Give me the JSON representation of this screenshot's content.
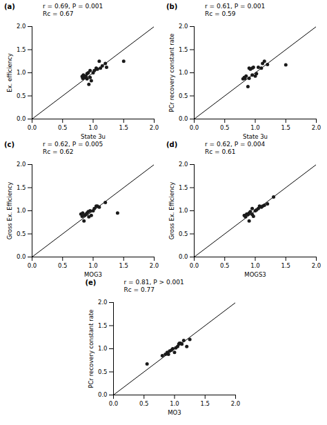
{
  "chart_data": [
    {
      "type": "scatter",
      "title": "(a)",
      "annotation": "r = 0.69, P = 0.001\nRc = 0.67",
      "xlabel": "State 3u",
      "ylabel": "Ex. efficiency",
      "xlim": [
        0.0,
        2.0
      ],
      "ylim": [
        0.0,
        2.0
      ],
      "xticks": [
        {
          "value": 0,
          "label": "0.0"
        },
        0.5,
        {
          "value": 1,
          "label": "1.0"
        },
        1.5,
        {
          "value": 2,
          "label": "2.0"
        }
      ],
      "yticks": [
        {
          "value": 0,
          "label": "0.0"
        },
        0.5,
        {
          "value": 1,
          "label": "1.0"
        },
        1.5,
        {
          "value": 2,
          "label": "2.0"
        }
      ],
      "grid": false,
      "series": [
        {
          "type": "line",
          "color": "#000000",
          "x": [
            0,
            2
          ],
          "values": [
            0,
            2
          ]
        },
        {
          "type": "scatter",
          "color": "#1a1a1a",
          "x": [
            0.82,
            0.83,
            0.84,
            0.86,
            0.88,
            0.9,
            0.9,
            0.92,
            0.93,
            0.95,
            0.95,
            0.97,
            1.0,
            1.02,
            1.05,
            1.07,
            1.1,
            1.12,
            1.15,
            1.2,
            1.22,
            1.5
          ],
          "values": [
            0.92,
            0.88,
            0.95,
            0.9,
            0.93,
            0.87,
            0.98,
            1.0,
            0.75,
            0.9,
            1.05,
            0.83,
            1.0,
            1.05,
            1.1,
            1.08,
            1.25,
            1.1,
            1.15,
            1.2,
            1.12,
            1.25
          ]
        }
      ]
    },
    {
      "type": "scatter",
      "title": "(b)",
      "annotation": "r = 0.61, P = 0.001\nRc = 0.59",
      "xlabel": "State 3u",
      "ylabel": "PCr recovery constant rate",
      "xlim": [
        0.0,
        2.0
      ],
      "ylim": [
        0.0,
        2.0
      ],
      "xticks": [
        {
          "value": 0,
          "label": "0.0"
        },
        0.5,
        {
          "value": 1,
          "label": "1.0"
        },
        1.5,
        {
          "value": 2,
          "label": "2.0"
        }
      ],
      "yticks": [
        {
          "value": 0,
          "label": "0.0"
        },
        0.5,
        {
          "value": 1,
          "label": "1.0"
        },
        1.5,
        {
          "value": 2,
          "label": "2.0"
        }
      ],
      "grid": false,
      "series": [
        {
          "type": "line",
          "color": "#000000",
          "x": [
            0,
            2
          ],
          "values": [
            0,
            2
          ]
        },
        {
          "type": "scatter",
          "color": "#1a1a1a",
          "x": [
            0.8,
            0.82,
            0.83,
            0.85,
            0.88,
            0.9,
            0.9,
            0.92,
            0.95,
            0.95,
            0.97,
            1.0,
            1.02,
            1.05,
            1.1,
            1.12,
            1.15,
            1.2,
            1.5
          ],
          "values": [
            0.87,
            0.9,
            0.88,
            0.93,
            0.7,
            0.88,
            1.1,
            1.08,
            0.95,
            1.1,
            1.12,
            0.93,
            0.98,
            1.12,
            1.1,
            1.2,
            1.25,
            1.18,
            1.17
          ]
        }
      ]
    },
    {
      "type": "scatter",
      "title": "(c)",
      "annotation": "r = 0.62, P = 0.005\nRc = 0.62",
      "xlabel": "MOG3",
      "ylabel": "Gross Ex. Efficiency",
      "xlim": [
        0.0,
        2.0
      ],
      "ylim": [
        0.0,
        2.0
      ],
      "xticks": [
        {
          "value": 0,
          "label": "0.0"
        },
        0.5,
        {
          "value": 1,
          "label": "1.0"
        },
        1.5,
        {
          "value": 2,
          "label": "2.0"
        }
      ],
      "yticks": [
        {
          "value": 0,
          "label": "0.0"
        },
        0.5,
        {
          "value": 1,
          "label": "1.0"
        },
        1.5,
        {
          "value": 2,
          "label": "2.0"
        }
      ],
      "grid": false,
      "series": [
        {
          "type": "line",
          "color": "#000000",
          "x": [
            0,
            2
          ],
          "values": [
            0,
            2
          ]
        },
        {
          "type": "scatter",
          "color": "#1a1a1a",
          "x": [
            0.8,
            0.82,
            0.83,
            0.85,
            0.86,
            0.88,
            0.9,
            0.92,
            0.93,
            0.95,
            0.97,
            1.0,
            1.02,
            1.05,
            1.07,
            1.1,
            1.2,
            1.4
          ],
          "values": [
            0.93,
            0.88,
            0.95,
            0.78,
            0.9,
            0.92,
            0.95,
            0.98,
            0.87,
            1.0,
            0.9,
            1.0,
            1.05,
            1.1,
            1.1,
            1.08,
            1.18,
            0.95
          ]
        }
      ]
    },
    {
      "type": "scatter",
      "title": "(d)",
      "annotation": "r = 0.62, P = 0.004\nRc = 0.61",
      "xlabel": "MOGS3",
      "ylabel": "Gross Ex. Efficiency",
      "xlim": [
        0.0,
        2.0
      ],
      "ylim": [
        0.0,
        2.0
      ],
      "xticks": [
        {
          "value": 0,
          "label": "0.0"
        },
        0.5,
        {
          "value": 1,
          "label": "1.0"
        },
        1.5,
        {
          "value": 2,
          "label": "2.0"
        }
      ],
      "yticks": [
        {
          "value": 0,
          "label": "0.0"
        },
        0.5,
        {
          "value": 1,
          "label": "1.0"
        },
        1.5,
        {
          "value": 2,
          "label": "2.0"
        }
      ],
      "grid": false,
      "series": [
        {
          "type": "line",
          "color": "#000000",
          "x": [
            0,
            2
          ],
          "values": [
            0,
            2
          ]
        },
        {
          "type": "scatter",
          "color": "#1a1a1a",
          "x": [
            0.82,
            0.84,
            0.86,
            0.88,
            0.9,
            0.9,
            0.92,
            0.95,
            0.95,
            0.97,
            1.0,
            1.02,
            1.05,
            1.07,
            1.1,
            1.12,
            1.15,
            1.2,
            1.3
          ],
          "values": [
            0.9,
            0.87,
            0.93,
            0.92,
            0.95,
            0.78,
            0.98,
            0.92,
            1.05,
            0.88,
            1.0,
            1.02,
            1.05,
            1.1,
            1.08,
            1.1,
            1.12,
            1.15,
            1.3
          ]
        }
      ]
    },
    {
      "type": "scatter",
      "title": "(e)",
      "annotation": "r = 0.81, P > 0.001\nRc = 0.77",
      "xlabel": "MO3",
      "ylabel": "PCr recovery constant rate",
      "xlim": [
        0.0,
        2.0
      ],
      "ylim": [
        0.0,
        2.0
      ],
      "xticks": [
        {
          "value": 0,
          "label": "0.0"
        },
        0.5,
        {
          "value": 1,
          "label": "1.0"
        },
        1.5,
        {
          "value": 2,
          "label": "2.0"
        }
      ],
      "yticks": [
        {
          "value": 0,
          "label": "0.0"
        },
        0.5,
        {
          "value": 1,
          "label": "1.0"
        },
        1.5,
        {
          "value": 2,
          "label": "2.0"
        }
      ],
      "grid": false,
      "series": [
        {
          "type": "line",
          "color": "#000000",
          "x": [
            0,
            2
          ],
          "values": [
            0,
            2
          ]
        },
        {
          "type": "scatter",
          "color": "#1a1a1a",
          "x": [
            0.55,
            0.8,
            0.85,
            0.88,
            0.9,
            0.92,
            0.95,
            0.97,
            1.0,
            1.02,
            1.05,
            1.07,
            1.08,
            1.1,
            1.12,
            1.15,
            1.2,
            1.25
          ],
          "values": [
            0.67,
            0.85,
            0.88,
            0.92,
            0.88,
            0.95,
            0.97,
            1.0,
            0.92,
            1.02,
            1.05,
            1.1,
            1.12,
            1.12,
            1.1,
            1.18,
            1.05,
            1.2
          ]
        }
      ]
    }
  ]
}
